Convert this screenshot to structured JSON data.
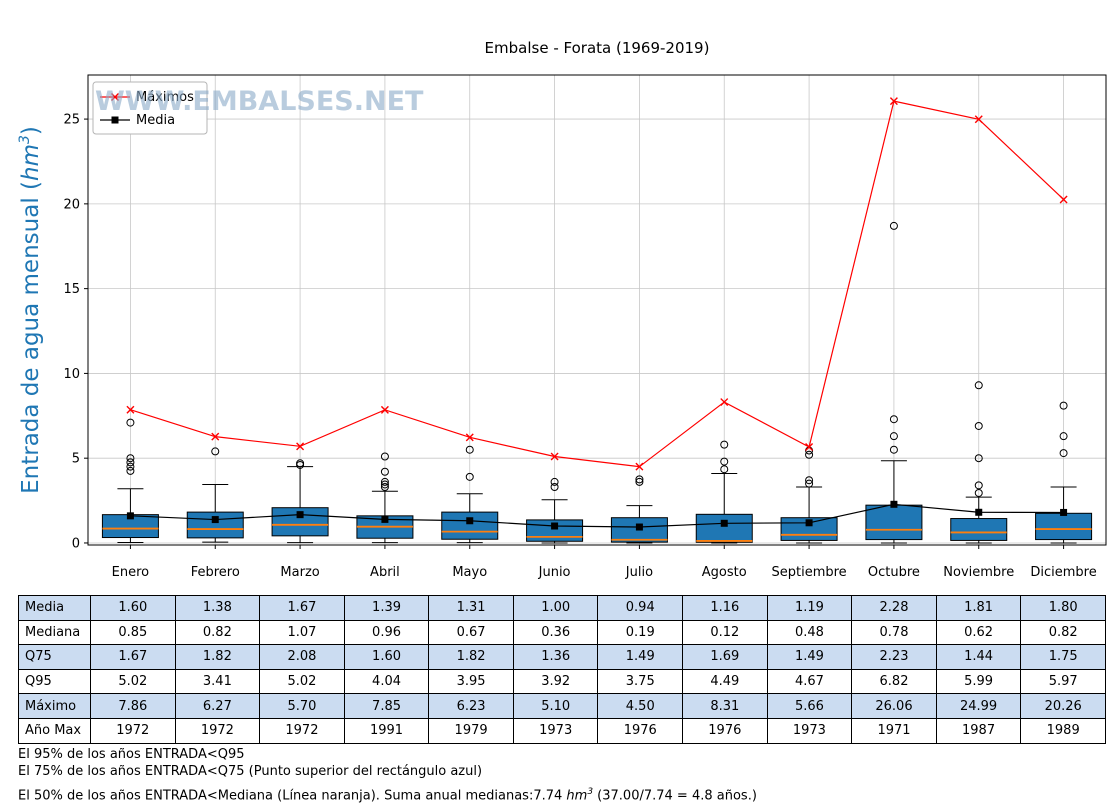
{
  "header": {
    "title": "Embalse - Forata (1969-2019)"
  },
  "labels": {
    "ylabel_pre": "Entrada de agua mensual (",
    "ylabel_unit": "hm",
    "ylabel_sup": "3",
    "ylabel_post": ")"
  },
  "chart_data": {
    "type": "boxplot",
    "title": "Embalse - Forata (1969-2019)",
    "watermark": "WWW.EMBALSES.NET",
    "ylabel": "Entrada de agua mensual (hm3)",
    "xlabel": "",
    "categories": [
      "Enero",
      "Febrero",
      "Marzo",
      "Abril",
      "Mayo",
      "Junio",
      "Julio",
      "Agosto",
      "Septiembre",
      "Octubre",
      "Noviembre",
      "Diciembre"
    ],
    "ylim": [
      -0.12,
      27.6
    ],
    "yticks": [
      0,
      5,
      10,
      15,
      20,
      25
    ],
    "grid": true,
    "legend_position": "upper-left",
    "colors": {
      "box_fill": "#1f77b4",
      "median_line": "#ff7f0e",
      "max_line": "#ff0000",
      "mean_line": "#000000",
      "axis_label": "#1f77b4",
      "watermark": "#8aaac8",
      "grid": "#c8c8c8"
    },
    "series": [
      {
        "name": "Máximos",
        "type": "line",
        "marker": "x",
        "color": "#ff0000",
        "values": [
          7.86,
          6.27,
          5.7,
          7.85,
          6.23,
          5.1,
          4.5,
          8.31,
          5.66,
          26.06,
          24.99,
          20.26
        ]
      },
      {
        "name": "Media",
        "type": "line",
        "marker": "square",
        "color": "#000000",
        "values": [
          1.6,
          1.38,
          1.67,
          1.39,
          1.31,
          1.0,
          0.94,
          1.16,
          1.19,
          2.28,
          1.81,
          1.8
        ]
      }
    ],
    "boxes": [
      {
        "month": "Enero",
        "q1": 0.32,
        "median": 0.85,
        "q3": 1.67,
        "whisker_low": 0.03,
        "whisker_high": 3.2,
        "outliers": [
          4.25,
          4.5,
          4.75,
          5.0,
          7.1
        ]
      },
      {
        "month": "Febrero",
        "q1": 0.3,
        "median": 0.82,
        "q3": 1.82,
        "whisker_low": 0.05,
        "whisker_high": 3.45,
        "outliers": [
          5.4
        ]
      },
      {
        "month": "Marzo",
        "q1": 0.42,
        "median": 1.07,
        "q3": 2.08,
        "whisker_low": 0.02,
        "whisker_high": 4.5,
        "outliers": [
          4.6,
          4.7
        ]
      },
      {
        "month": "Abril",
        "q1": 0.28,
        "median": 0.96,
        "q3": 1.6,
        "whisker_low": 0.02,
        "whisker_high": 3.05,
        "outliers": [
          3.3,
          3.45,
          3.6,
          4.2,
          5.1
        ]
      },
      {
        "month": "Mayo",
        "q1": 0.22,
        "median": 0.67,
        "q3": 1.82,
        "whisker_low": 0.02,
        "whisker_high": 2.9,
        "outliers": [
          3.9,
          5.5
        ]
      },
      {
        "month": "Junio",
        "q1": 0.1,
        "median": 0.36,
        "q3": 1.36,
        "whisker_low": 0.0,
        "whisker_high": 2.55,
        "outliers": [
          3.3,
          3.6
        ]
      },
      {
        "month": "Julio",
        "q1": 0.05,
        "median": 0.19,
        "q3": 1.49,
        "whisker_low": 0.0,
        "whisker_high": 2.2,
        "outliers": [
          3.6,
          3.75
        ]
      },
      {
        "month": "Agosto",
        "q1": 0.04,
        "median": 0.12,
        "q3": 1.69,
        "whisker_low": 0.0,
        "whisker_high": 4.1,
        "outliers": [
          4.35,
          4.8,
          5.8
        ]
      },
      {
        "month": "Septiembre",
        "q1": 0.15,
        "median": 0.48,
        "q3": 1.49,
        "whisker_low": 0.0,
        "whisker_high": 3.3,
        "outliers": [
          3.5,
          3.7,
          5.2,
          5.45
        ]
      },
      {
        "month": "Octubre",
        "q1": 0.2,
        "median": 0.78,
        "q3": 2.23,
        "whisker_low": 0.0,
        "whisker_high": 4.85,
        "outliers": [
          5.5,
          6.3,
          7.3,
          18.7
        ]
      },
      {
        "month": "Noviembre",
        "q1": 0.15,
        "median": 0.62,
        "q3": 1.44,
        "whisker_low": 0.0,
        "whisker_high": 2.7,
        "outliers": [
          2.95,
          3.4,
          5.0,
          6.9,
          9.3
        ]
      },
      {
        "month": "Diciembre",
        "q1": 0.2,
        "median": 0.82,
        "q3": 1.75,
        "whisker_low": 0.0,
        "whisker_high": 3.3,
        "outliers": [
          5.3,
          6.3,
          8.1
        ]
      }
    ]
  },
  "table": {
    "shade_color": "#cbdcf1",
    "rows": [
      {
        "label": "Media",
        "shaded": true,
        "values": [
          "1.60",
          "1.38",
          "1.67",
          "1.39",
          "1.31",
          "1.00",
          "0.94",
          "1.16",
          "1.19",
          "2.28",
          "1.81",
          "1.80"
        ]
      },
      {
        "label": "Mediana",
        "shaded": false,
        "values": [
          "0.85",
          "0.82",
          "1.07",
          "0.96",
          "0.67",
          "0.36",
          "0.19",
          "0.12",
          "0.48",
          "0.78",
          "0.62",
          "0.82"
        ]
      },
      {
        "label": "Q75",
        "shaded": true,
        "values": [
          "1.67",
          "1.82",
          "2.08",
          "1.60",
          "1.82",
          "1.36",
          "1.49",
          "1.69",
          "1.49",
          "2.23",
          "1.44",
          "1.75"
        ]
      },
      {
        "label": "Q95",
        "shaded": false,
        "values": [
          "5.02",
          "3.41",
          "5.02",
          "4.04",
          "3.95",
          "3.92",
          "3.75",
          "4.49",
          "4.67",
          "6.82",
          "5.99",
          "5.97"
        ]
      },
      {
        "label": "Máximo",
        "shaded": true,
        "values": [
          "7.86",
          "6.27",
          "5.70",
          "7.85",
          "6.23",
          "5.10",
          "4.50",
          "8.31",
          "5.66",
          "26.06",
          "24.99",
          "20.26"
        ]
      },
      {
        "label": "Año Max",
        "shaded": false,
        "values": [
          "1972",
          "1972",
          "1972",
          "1991",
          "1979",
          "1973",
          "1976",
          "1976",
          "1973",
          "1971",
          "1987",
          "1989"
        ]
      }
    ]
  },
  "footnotes": {
    "line1": "El 95% de los años ENTRADA<Q95",
    "line2": "El 75% de los años ENTRADA<Q75 (Punto superior del rectángulo azul)",
    "line3_pre": "El 50% de los años ENTRADA<Mediana (Línea naranja). Suma anual medianas:7.74 ",
    "line3_unit": "hm",
    "line3_sup": "3",
    "line3_post": " (37.00/7.74 = 4.8 años.)"
  }
}
